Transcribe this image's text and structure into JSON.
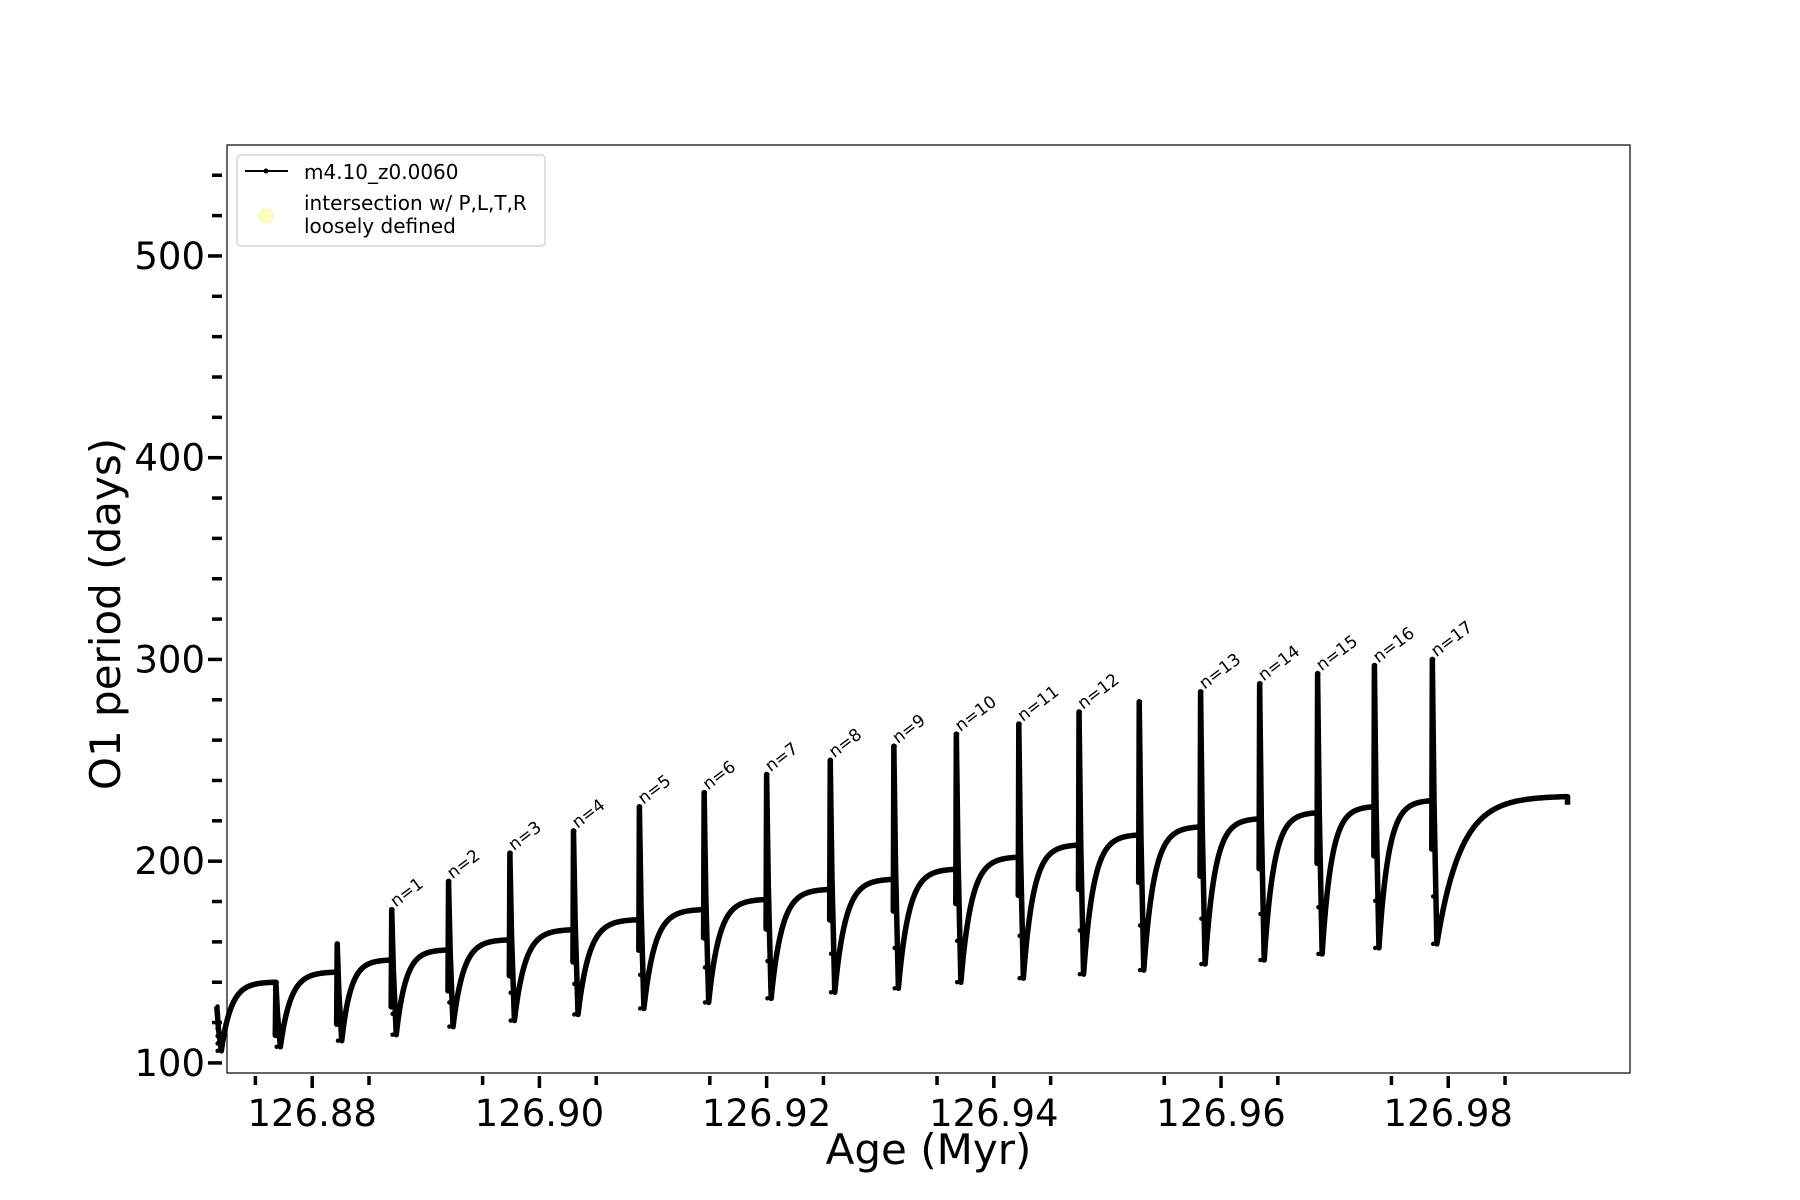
{
  "chart_data": {
    "type": "line",
    "xlabel": "Age (Myr)",
    "ylabel": "O1 period (days)",
    "xlim": [
      126.8725,
      126.996
    ],
    "ylim": [
      95,
      555
    ],
    "xticks_major": [
      126.88,
      126.9,
      126.92,
      126.94,
      126.96,
      126.98
    ],
    "xtick_labels": [
      "126.88",
      "126.90",
      "126.92",
      "126.94",
      "126.96",
      "126.98"
    ],
    "xticks_minor": [
      126.875,
      126.885,
      126.895,
      126.905,
      126.915,
      126.925,
      126.935,
      126.945,
      126.955,
      126.965,
      126.975,
      126.985
    ],
    "yticks_major": [
      100,
      200,
      300,
      400,
      500
    ],
    "ytick_labels": [
      "100",
      "200",
      "300",
      "400",
      "500"
    ],
    "yticks_minor": [
      120,
      140,
      160,
      180,
      220,
      240,
      260,
      280,
      320,
      340,
      360,
      380,
      420,
      440,
      460,
      480,
      520,
      540
    ],
    "grid": false,
    "legend_position": "top-left",
    "legend": [
      {
        "label": "m4.10_z0.0060",
        "marker": "line-dot",
        "color": "#000000"
      },
      {
        "label": "intersection w/ P,L,T,R\nloosely defined",
        "marker": "circle",
        "color": "#ffffc0"
      }
    ],
    "series": [
      {
        "name": "m4.10_z0.0060",
        "color": "#000000",
        "x_start": 126.8715,
        "x_end": 126.9905,
        "pulses": [
          {
            "t": 126.8716,
            "spike": 128,
            "min": 106,
            "plateau": 140
          },
          {
            "t": 126.8768,
            "spike": 140,
            "min": 108,
            "plateau": 145
          },
          {
            "t": 126.8822,
            "spike": 159,
            "min": 111,
            "plateau": 151
          },
          {
            "t": 126.887,
            "spike": 176,
            "min": 114,
            "plateau": 156
          },
          {
            "t": 126.892,
            "spike": 190,
            "min": 118,
            "plateau": 161
          },
          {
            "t": 126.8974,
            "spike": 204,
            "min": 121,
            "plateau": 166
          },
          {
            "t": 126.903,
            "spike": 215,
            "min": 124,
            "plateau": 171
          },
          {
            "t": 126.9088,
            "spike": 227,
            "min": 127,
            "plateau": 176
          },
          {
            "t": 126.9145,
            "spike": 234,
            "min": 130,
            "plateau": 181
          },
          {
            "t": 126.92,
            "spike": 243,
            "min": 132,
            "plateau": 186
          },
          {
            "t": 126.9256,
            "spike": 250,
            "min": 135,
            "plateau": 191
          },
          {
            "t": 126.9312,
            "spike": 257,
            "min": 137,
            "plateau": 196
          },
          {
            "t": 126.9367,
            "spike": 263,
            "min": 140,
            "plateau": 202
          },
          {
            "t": 126.9422,
            "spike": 268,
            "min": 142,
            "plateau": 208
          },
          {
            "t": 126.9475,
            "spike": 274,
            "min": 144,
            "plateau": 213
          },
          {
            "t": 126.9528,
            "spike": 279,
            "min": 146,
            "plateau": 217
          },
          {
            "t": 126.9582,
            "spike": 284,
            "min": 149,
            "plateau": 221
          },
          {
            "t": 126.9634,
            "spike": 288,
            "min": 151,
            "plateau": 224
          },
          {
            "t": 126.9685,
            "spike": 293,
            "min": 154,
            "plateau": 227
          },
          {
            "t": 126.9735,
            "spike": 297,
            "min": 157,
            "plateau": 230
          },
          {
            "t": 126.9786,
            "spike": 300,
            "min": 159,
            "plateau": 232
          }
        ],
        "end_value": 228
      }
    ],
    "annotations": [
      {
        "text": "n=1",
        "x": 126.887,
        "y": 176
      },
      {
        "text": "n=2",
        "x": 126.892,
        "y": 190
      },
      {
        "text": "n=3",
        "x": 126.8974,
        "y": 204
      },
      {
        "text": "n=4",
        "x": 126.903,
        "y": 215
      },
      {
        "text": "n=5",
        "x": 126.9088,
        "y": 227
      },
      {
        "text": "n=6",
        "x": 126.9145,
        "y": 234
      },
      {
        "text": "n=7",
        "x": 126.92,
        "y": 243
      },
      {
        "text": "n=8",
        "x": 126.9256,
        "y": 250
      },
      {
        "text": "n=9",
        "x": 126.9312,
        "y": 257
      },
      {
        "text": "n=10",
        "x": 126.9367,
        "y": 263
      },
      {
        "text": "n=11",
        "x": 126.9422,
        "y": 268
      },
      {
        "text": "n=12",
        "x": 126.9475,
        "y": 274
      },
      {
        "text": "n=13",
        "x": 126.9582,
        "y": 284
      },
      {
        "text": "n=14",
        "x": 126.9634,
        "y": 288
      },
      {
        "text": "n=15",
        "x": 126.9685,
        "y": 293
      },
      {
        "text": "n=16",
        "x": 126.9735,
        "y": 297
      },
      {
        "text": "n=17",
        "x": 126.9786,
        "y": 300
      }
    ]
  }
}
